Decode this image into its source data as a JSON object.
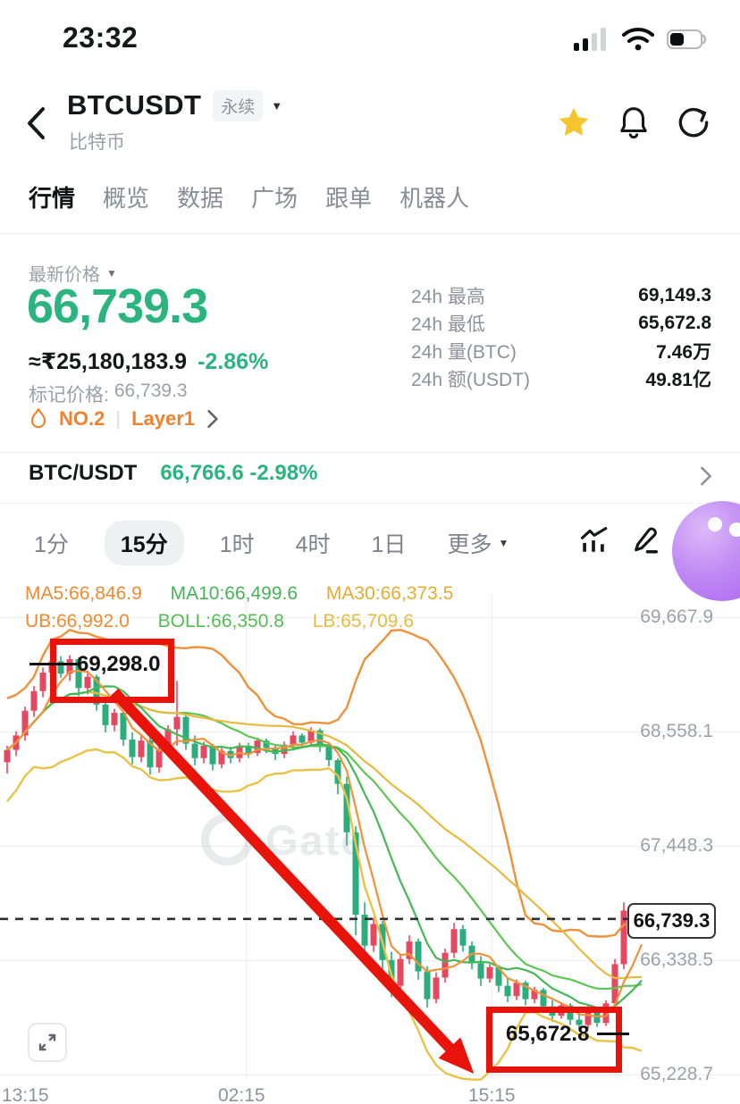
{
  "status_bar": {
    "time": "23:32"
  },
  "header": {
    "symbol": "BTCUSDT",
    "contract_type": "永续",
    "coin_name": "比特币"
  },
  "nav_tabs": [
    {
      "label": "行情",
      "active": true
    },
    {
      "label": "概览",
      "active": false
    },
    {
      "label": "数据",
      "active": false
    },
    {
      "label": "广场",
      "active": false
    },
    {
      "label": "跟单",
      "active": false
    },
    {
      "label": "机器人",
      "active": false
    }
  ],
  "price_panel": {
    "latest_price_label": "最新价格",
    "price": "66,739.3",
    "fiat_value": "≈₹25,180,183.9",
    "change_pct": "-2.86%",
    "mark_price_label": "标记价格:",
    "mark_price": "66,739.3",
    "rank_badge": "NO.2",
    "badge_separator": "|",
    "category_badge": "Layer1",
    "stats": [
      {
        "label": "24h 最高",
        "value": "69,149.3"
      },
      {
        "label": "24h 最低",
        "value": "65,672.8"
      },
      {
        "label": "24h 量(BTC)",
        "value": "7.46万"
      },
      {
        "label": "24h 额(USDT)",
        "value": "49.81亿"
      }
    ]
  },
  "spot_row": {
    "pair": "BTC/USDT",
    "price": "66,766.6",
    "change_pct": "-2.98%"
  },
  "toolbar": {
    "timeframes": [
      {
        "label": "1分",
        "active": false
      },
      {
        "label": "15分",
        "active": true
      },
      {
        "label": "1时",
        "active": false
      },
      {
        "label": "4时",
        "active": false
      },
      {
        "label": "1日",
        "active": false
      },
      {
        "label": "更多",
        "active": false
      }
    ]
  },
  "chart": {
    "watermark": "Gate",
    "indicators_row1": [
      {
        "label": "MA5:66,846.9",
        "color": "#ef8a2f"
      },
      {
        "label": "MA10:66,499.6",
        "color": "#47b257"
      },
      {
        "label": "MA30:66,373.5",
        "color": "#e6ad2e"
      }
    ],
    "indicators_row2": [
      {
        "label": "UB:66,992.0",
        "color": "#ef8a2f"
      },
      {
        "label": "BOLL:66,350.8",
        "color": "#54bd51"
      },
      {
        "label": "LB:65,709.6",
        "color": "#e6bb41"
      }
    ]
  },
  "chart_data": {
    "type": "candlestick",
    "interval": "15分",
    "y_tick_labels": [
      "69,667.9",
      "68,558.1",
      "67,448.3",
      "66,338.5",
      "65,228.7"
    ],
    "y_tick_prices": [
      69667.9,
      68558.1,
      67448.3,
      66338.5,
      65228.7
    ],
    "x_ticks": [
      "13:15",
      "02:15",
      "15:15"
    ],
    "price_line": {
      "price": 66739.3,
      "label": "66,739.3"
    },
    "annotations": {
      "high": {
        "price": 69298.0,
        "label": "69,298.0"
      },
      "low": {
        "price": 65672.8,
        "label": "65,672.8"
      },
      "arrow": "red arrow from high box down to low near 15:15"
    },
    "indicators": {
      "ma_periods": [
        5,
        10,
        30
      ],
      "boll": {
        "period": 20,
        "k": 2
      }
    },
    "colors": {
      "up": "#e6495f",
      "down": "#2bae7c",
      "ma5": "#f0923a",
      "ma10": "#43b854",
      "ma30": "#e8b93f",
      "ub": "#ef9139",
      "boll": "#5ec554",
      "lb": "#e9c246",
      "grid": "rgba(140,150,160,0.16)",
      "price_dash": "#2c2e33"
    },
    "candles": [
      [
        68260,
        68420,
        68150,
        68380
      ],
      [
        68380,
        68560,
        68320,
        68520
      ],
      [
        68520,
        68800,
        68470,
        68760
      ],
      [
        68760,
        69000,
        68700,
        68950
      ],
      [
        68950,
        69180,
        68890,
        69130
      ],
      [
        69130,
        69298,
        69020,
        69240
      ],
      [
        69240,
        69290,
        69080,
        69120
      ],
      [
        69120,
        69298,
        69050,
        69260
      ],
      [
        69260,
        69280,
        68900,
        68980
      ],
      [
        68980,
        69150,
        68920,
        69090
      ],
      [
        69090,
        69110,
        68760,
        68820
      ],
      [
        68820,
        68900,
        68550,
        68620
      ],
      [
        68620,
        68780,
        68560,
        68740
      ],
      [
        68740,
        68760,
        68420,
        68480
      ],
      [
        68480,
        68550,
        68240,
        68310
      ],
      [
        68310,
        68520,
        68260,
        68470
      ],
      [
        68470,
        68500,
        68140,
        68210
      ],
      [
        68210,
        68420,
        68160,
        68380
      ],
      [
        68380,
        68620,
        68330,
        68580
      ],
      [
        68580,
        69050,
        68420,
        68700
      ],
      [
        68700,
        68720,
        68380,
        68440
      ],
      [
        68440,
        68520,
        68230,
        68300
      ],
      [
        68300,
        68460,
        68250,
        68420
      ],
      [
        68420,
        68440,
        68180,
        68240
      ],
      [
        68240,
        68400,
        68200,
        68370
      ],
      [
        68370,
        68410,
        68250,
        68300
      ],
      [
        68300,
        68450,
        68260,
        68420
      ],
      [
        68420,
        68450,
        68300,
        68350
      ],
      [
        68350,
        68500,
        68320,
        68470
      ],
      [
        68470,
        68490,
        68350,
        68400
      ],
      [
        68400,
        68420,
        68280,
        68340
      ],
      [
        68340,
        68460,
        68300,
        68430
      ],
      [
        68430,
        68560,
        68390,
        68520
      ],
      [
        68520,
        68540,
        68400,
        68450
      ],
      [
        68450,
        68600,
        68420,
        68570
      ],
      [
        68570,
        68590,
        68360,
        68410
      ],
      [
        68410,
        68440,
        68220,
        68280
      ],
      [
        68280,
        68300,
        67950,
        68050
      ],
      [
        68050,
        68120,
        67450,
        67580
      ],
      [
        67580,
        67640,
        66580,
        66780
      ],
      [
        66780,
        66900,
        66350,
        66480
      ],
      [
        66480,
        66750,
        66420,
        66690
      ],
      [
        66690,
        66720,
        66250,
        66340
      ],
      [
        66340,
        66420,
        65980,
        66090
      ],
      [
        66090,
        66400,
        66040,
        66350
      ],
      [
        66350,
        66580,
        66300,
        66520
      ],
      [
        66520,
        66550,
        66150,
        66230
      ],
      [
        66230,
        66280,
        65880,
        65960
      ],
      [
        65960,
        66220,
        65920,
        66170
      ],
      [
        66170,
        66450,
        66120,
        66410
      ],
      [
        66410,
        66700,
        66360,
        66640
      ],
      [
        66640,
        66680,
        66420,
        66480
      ],
      [
        66480,
        66520,
        66250,
        66310
      ],
      [
        66310,
        66380,
        66090,
        66160
      ],
      [
        66160,
        66300,
        66120,
        66270
      ],
      [
        66270,
        66290,
        66030,
        66090
      ],
      [
        66090,
        66160,
        65930,
        65990
      ],
      [
        65990,
        66150,
        65950,
        66120
      ],
      [
        66120,
        66140,
        65900,
        65960
      ],
      [
        65960,
        66080,
        65920,
        66050
      ],
      [
        66050,
        66070,
        65830,
        65890
      ],
      [
        65890,
        65950,
        65740,
        65800
      ],
      [
        65800,
        65930,
        65770,
        65900
      ],
      [
        65900,
        65920,
        65710,
        65760
      ],
      [
        65760,
        65840,
        65672.8,
        65710
      ],
      [
        65710,
        65900,
        65680,
        65860
      ],
      [
        65860,
        65880,
        65690,
        65730
      ],
      [
        65730,
        65950,
        65700,
        65920
      ],
      [
        65920,
        66350,
        65880,
        66300
      ],
      [
        66300,
        66900,
        66250,
        66820
      ],
      [
        66820,
        66880,
        66600,
        66680
      ],
      [
        66680,
        66820,
        66640,
        66739.3
      ]
    ]
  }
}
